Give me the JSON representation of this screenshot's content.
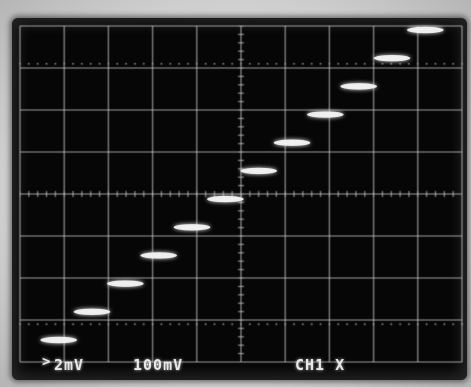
{
  "screen": {
    "readouts": {
      "ch1_scale": "2mV",
      "ch2_scale": "100mV",
      "channel_mode": "CH1 X"
    },
    "graticule": {
      "major_x_divisions": 10,
      "major_y_divisions": 8,
      "minor_ticks_per_division": 5
    },
    "trace_color": "#f2f2f2",
    "staircase_levels": 12
  }
}
